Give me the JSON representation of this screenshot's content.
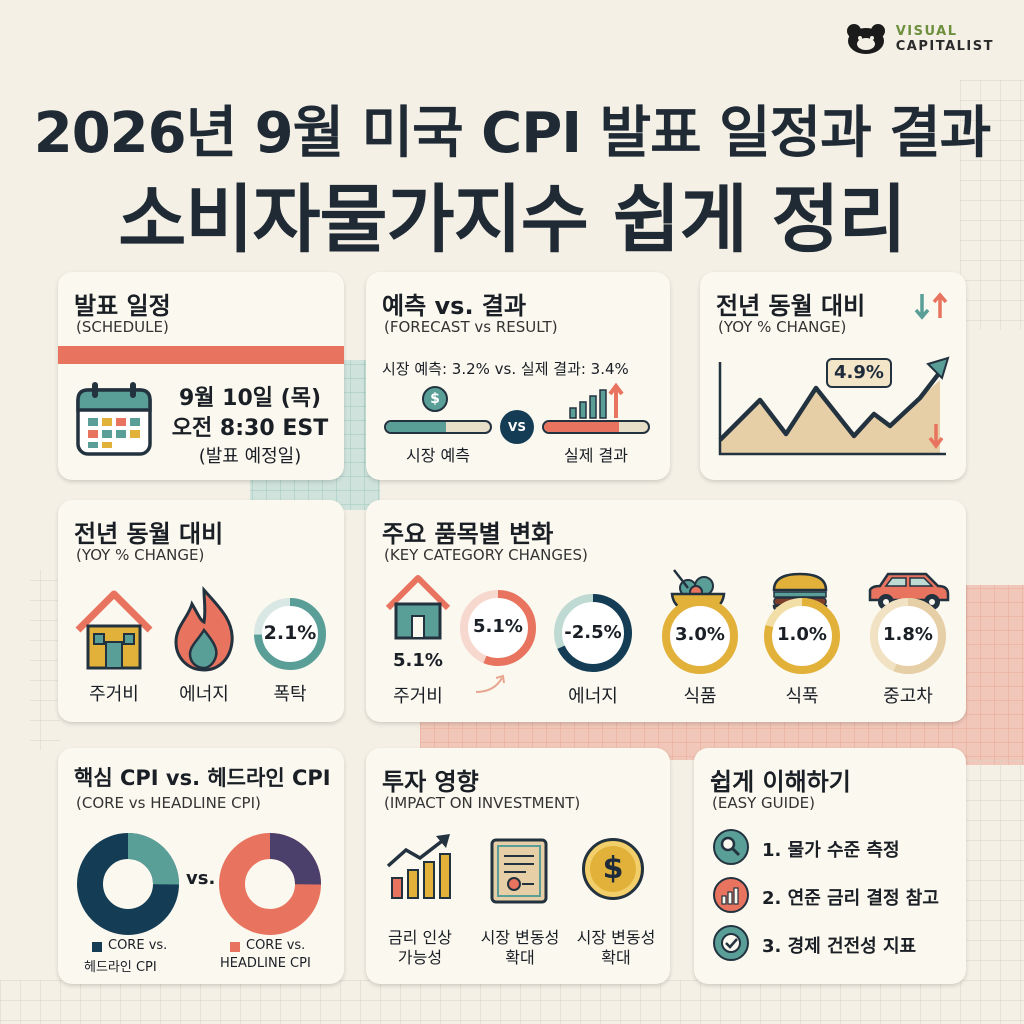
{
  "brand": {
    "line1": "VISUAL",
    "line2": "CAPITALIST"
  },
  "title_line1": "2026년 9월 미국 CPI 발표 일정과 결과",
  "title_line2": "소비자물가지수 쉽게 정리",
  "colors": {
    "navy": "#143d55",
    "teal": "#5a9e98",
    "coral": "#e8735f",
    "gold": "#e2b13a",
    "tan": "#e6cfa6"
  },
  "schedule": {
    "title": "발표 일정",
    "subtitle": "(SCHEDULE)",
    "date": "9월 10일 (목)",
    "time": "오전 8:30 EST",
    "note": "(발표 예정일)"
  },
  "forecast": {
    "title": "예측 vs. 결과",
    "subtitle": "(FORECAST vs RESULT)",
    "line": "시장 예측: 3.2%  vs.  실제 결과: 3.4%",
    "vs_label": "VS",
    "left_label": "시장 예측",
    "right_label": "실제 결과",
    "dollar": "$"
  },
  "yoy_chart": {
    "title": "전년 동월 대비",
    "subtitle": "(YOY % CHANGE)",
    "value": "4.9%"
  },
  "yoy_items": {
    "title": "전년 동월 대비",
    "subtitle": "(YOY % CHANGE)",
    "ring_value": "2.1%",
    "labels": [
      "주거비",
      "에너지",
      "폭탁"
    ]
  },
  "categories": {
    "title": "주요 품목별 변화",
    "subtitle": "(KEY CATEGORY CHANGES)",
    "house_value": "5.1%",
    "house_label": "주거비",
    "ring1": "5.1%",
    "ring2": "-2.5%",
    "ring2_label": "에너지",
    "ring3": "3.0%",
    "ring3_label": "식품",
    "ring4": "1.0%",
    "ring4_label": "식푹",
    "ring5": "1.8%",
    "ring5_label": "중고차"
  },
  "core": {
    "title": "핵심 CPI vs. 헤드라인 CPI",
    "subtitle": "(CORE vs HEADLINE CPI)",
    "vs": "vs.",
    "legend1_l1": "CORE vs.",
    "legend1_l2": "헤드라인 CPI",
    "legend2_l1": "CORE vs.",
    "legend2_l2": "HEADLINE CPI"
  },
  "impact": {
    "title": "투자 영향",
    "subtitle": "(IMPACT ON INVESTMENT)",
    "items": [
      {
        "l1": "금리 인상",
        "l2": "가능성"
      },
      {
        "l1": "시장 변동성",
        "l2": "확대"
      },
      {
        "l1": "시장 변동성",
        "l2": "확대"
      }
    ],
    "dollar": "$"
  },
  "guide": {
    "title": "쉽게 이해하기",
    "subtitle": "(EASY GUIDE)",
    "items": [
      "1. 물가 수준 측정",
      "2. 연준 금리 결정 참고",
      "3. 경제 건전성 지표"
    ]
  }
}
